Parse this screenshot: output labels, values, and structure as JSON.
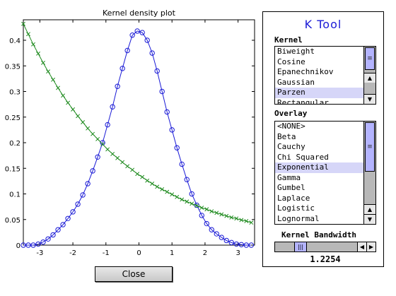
{
  "plot": {
    "title": "Kernel density plot",
    "xticks": [
      "-3",
      "-2",
      "-1",
      "0",
      "1",
      "2",
      "3"
    ],
    "yticks": [
      "0",
      "0.05",
      "0.1",
      "0.15",
      "0.2",
      "0.25",
      "0.3",
      "0.35",
      "0.4"
    ]
  },
  "chart_data": {
    "type": "line",
    "title": "Kernel density plot",
    "xlabel": "",
    "ylabel": "",
    "xlim": [
      -3.5,
      3.5
    ],
    "ylim": [
      0,
      0.44
    ],
    "grid": false,
    "series": [
      {
        "marker": "o",
        "color": "#1a1ad6",
        "x": [
          -3.5,
          -3.35,
          -3.2,
          -3.05,
          -2.9,
          -2.75,
          -2.6,
          -2.45,
          -2.3,
          -2.15,
          -2.0,
          -1.85,
          -1.7,
          -1.55,
          -1.4,
          -1.25,
          -1.1,
          -0.95,
          -0.8,
          -0.65,
          -0.5,
          -0.35,
          -0.2,
          -0.05,
          0.1,
          0.25,
          0.4,
          0.55,
          0.7,
          0.85,
          1.0,
          1.15,
          1.3,
          1.45,
          1.6,
          1.75,
          1.9,
          2.05,
          2.2,
          2.35,
          2.5,
          2.65,
          2.8,
          2.95,
          3.1,
          3.25,
          3.4
        ],
        "y": [
          0.0,
          0.0,
          0.0,
          0.002,
          0.006,
          0.012,
          0.02,
          0.03,
          0.04,
          0.052,
          0.065,
          0.08,
          0.098,
          0.12,
          0.145,
          0.172,
          0.2,
          0.235,
          0.27,
          0.31,
          0.345,
          0.38,
          0.41,
          0.418,
          0.415,
          0.4,
          0.375,
          0.34,
          0.3,
          0.26,
          0.225,
          0.19,
          0.158,
          0.128,
          0.1,
          0.078,
          0.058,
          0.042,
          0.03,
          0.022,
          0.015,
          0.009,
          0.005,
          0.002,
          0.001,
          0.0,
          0.0
        ]
      },
      {
        "marker": "x",
        "color": "#1e8a1e",
        "x": [
          -3.5,
          -3.35,
          -3.2,
          -3.05,
          -2.9,
          -2.75,
          -2.6,
          -2.45,
          -2.3,
          -2.15,
          -2.0,
          -1.85,
          -1.7,
          -1.55,
          -1.4,
          -1.25,
          -1.1,
          -0.95,
          -0.8,
          -0.65,
          -0.5,
          -0.35,
          -0.2,
          -0.05,
          0.1,
          0.25,
          0.4,
          0.55,
          0.7,
          0.85,
          1.0,
          1.15,
          1.3,
          1.45,
          1.6,
          1.75,
          1.9,
          2.05,
          2.2,
          2.35,
          2.5,
          2.65,
          2.8,
          2.95,
          3.1,
          3.25,
          3.4
        ],
        "y": [
          0.432,
          0.412,
          0.392,
          0.374,
          0.356,
          0.339,
          0.323,
          0.307,
          0.292,
          0.278,
          0.265,
          0.252,
          0.24,
          0.228,
          0.217,
          0.207,
          0.197,
          0.187,
          0.178,
          0.17,
          0.162,
          0.154,
          0.147,
          0.139,
          0.133,
          0.126,
          0.12,
          0.114,
          0.109,
          0.104,
          0.099,
          0.094,
          0.089,
          0.085,
          0.081,
          0.077,
          0.073,
          0.07,
          0.066,
          0.063,
          0.06,
          0.057,
          0.054,
          0.052,
          0.049,
          0.047,
          0.044
        ]
      }
    ]
  },
  "close_button": {
    "label": "Close"
  },
  "tool": {
    "title": "K Tool",
    "kernel_label": "Kernel",
    "kernel_items": [
      "Biweight",
      "Cosine",
      "Epanechnikov",
      "Gaussian",
      "Parzen",
      "Rectangular"
    ],
    "kernel_selected": "Parzen",
    "overlay_label": "Overlay",
    "overlay_items": [
      "<NONE>",
      "Beta",
      "Cauchy",
      "Chi Squared",
      "Exponential",
      "Gamma",
      "Gumbel",
      "Laplace",
      "Logistic",
      "Lognormal"
    ],
    "overlay_selected": "Exponential",
    "bandwidth_label": "Kernel Bandwidth",
    "bandwidth_value": "1.2254",
    "bandwidth_level": 0.25
  }
}
